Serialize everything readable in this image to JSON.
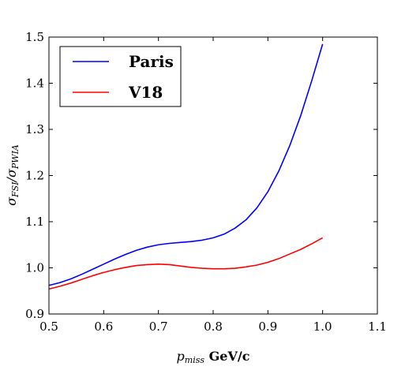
{
  "chart_data": {
    "type": "line",
    "title": "",
    "xlabel_math": "p",
    "xlabel_sub": "miss",
    "xlabel_unit": " GeV/c",
    "ylabel_main": "σ",
    "ylabel_sub1": "FSI",
    "ylabel_slash": "/σ",
    "ylabel_sub2": "PWIA",
    "xlim": [
      0.5,
      1.1
    ],
    "ylim": [
      0.9,
      1.5
    ],
    "xticks": [
      0.5,
      0.6,
      0.7,
      0.8,
      0.9,
      1.0,
      1.1
    ],
    "xtick_labels": [
      "0.5",
      "0.6",
      "0.7",
      "0.8",
      "0.9",
      "1.0",
      "1.1"
    ],
    "yticks": [
      0.9,
      1.0,
      1.1,
      1.2,
      1.3,
      1.4,
      1.5
    ],
    "ytick_labels": [
      "0.9",
      "1.0",
      "1.1",
      "1.2",
      "1.3",
      "1.4",
      "1.5"
    ],
    "grid": false,
    "legend_position": "top-left",
    "series": [
      {
        "name": "Paris",
        "color": "#0000ff",
        "x": [
          0.5,
          0.52,
          0.54,
          0.56,
          0.58,
          0.6,
          0.62,
          0.64,
          0.66,
          0.68,
          0.7,
          0.72,
          0.74,
          0.76,
          0.78,
          0.8,
          0.82,
          0.84,
          0.86,
          0.88,
          0.9,
          0.92,
          0.94,
          0.96,
          0.98,
          1.0
        ],
        "y": [
          0.962,
          0.968,
          0.976,
          0.986,
          0.997,
          1.008,
          1.019,
          1.029,
          1.038,
          1.045,
          1.05,
          1.053,
          1.055,
          1.057,
          1.06,
          1.065,
          1.073,
          1.086,
          1.104,
          1.13,
          1.165,
          1.21,
          1.265,
          1.33,
          1.405,
          1.485
        ]
      },
      {
        "name": "V18",
        "color": "#ff0000",
        "x": [
          0.5,
          0.52,
          0.54,
          0.56,
          0.58,
          0.6,
          0.62,
          0.64,
          0.66,
          0.68,
          0.7,
          0.72,
          0.74,
          0.76,
          0.78,
          0.8,
          0.82,
          0.84,
          0.86,
          0.88,
          0.9,
          0.92,
          0.94,
          0.96,
          0.98,
          1.0
        ],
        "y": [
          0.954,
          0.96,
          0.967,
          0.975,
          0.983,
          0.99,
          0.996,
          1.001,
          1.005,
          1.007,
          1.008,
          1.007,
          1.004,
          1.001,
          0.999,
          0.998,
          0.998,
          0.999,
          1.002,
          1.006,
          1.012,
          1.02,
          1.03,
          1.04,
          1.052,
          1.065
        ]
      }
    ]
  }
}
